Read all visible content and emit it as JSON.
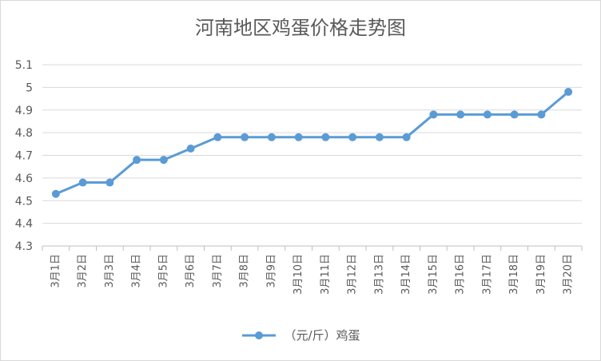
{
  "chart_data": {
    "type": "line",
    "title": "河南地区鸡蛋价格走势图",
    "categories": [
      "3月1日",
      "3月2日",
      "3月3日",
      "3月4日",
      "3月5日",
      "3月6日",
      "3月7日",
      "3月8日",
      "3月9日",
      "3月10日",
      "3月11日",
      "3月12日",
      "3月13日",
      "3月14日",
      "3月15日",
      "3月16日",
      "3月17日",
      "3月18日",
      "3月19日",
      "3月20日"
    ],
    "series": [
      {
        "name": "（元/斤）鸡蛋",
        "color": "#5b9bd5",
        "values": [
          4.53,
          4.58,
          4.58,
          4.68,
          4.68,
          4.73,
          4.78,
          4.78,
          4.78,
          4.78,
          4.78,
          4.78,
          4.78,
          4.78,
          4.88,
          4.88,
          4.88,
          4.88,
          4.88,
          4.98
        ]
      }
    ],
    "ylim": [
      4.3,
      5.1
    ],
    "yticks": [
      "4.3",
      "4.4",
      "4.5",
      "4.6",
      "4.7",
      "4.8",
      "4.9",
      "5",
      "5.1"
    ],
    "grid": true,
    "legend_position": "bottom"
  }
}
